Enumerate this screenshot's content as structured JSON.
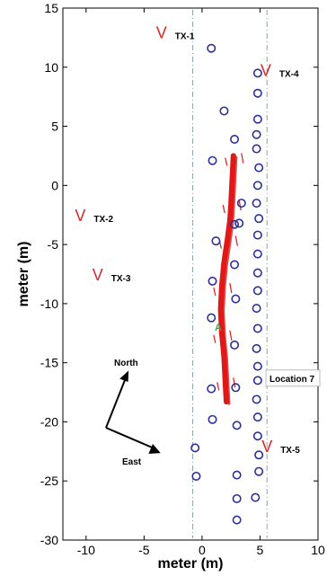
{
  "chart_data": {
    "type": "scatter",
    "title": "",
    "xlabel": "meter (m)",
    "ylabel": "meter (m)",
    "xlim": [
      -12,
      10
    ],
    "ylim": [
      -30,
      15
    ],
    "xticks": [
      -10,
      -5,
      0,
      5,
      10
    ],
    "yticks": [
      15,
      10,
      5,
      0,
      -5,
      -10,
      -15,
      -20,
      -25,
      -30
    ],
    "grid": false,
    "colors": {
      "circles": "#2b2f9a",
      "tx": "#d42a2a",
      "path": "#e01818",
      "guide": "#7fa8a8",
      "start": "#3aa63a"
    },
    "guide_lines_x": [
      -0.8,
      5.6
    ],
    "transmitters": [
      {
        "label": "TX-1",
        "x": -3.5,
        "y": 13.0
      },
      {
        "label": "TX-4",
        "x": 5.5,
        "y": 9.8
      },
      {
        "label": "TX-2",
        "x": -10.5,
        "y": -2.5
      },
      {
        "label": "TX-3",
        "x": -9.0,
        "y": -7.5
      },
      {
        "label": "TX-5",
        "x": 5.6,
        "y": -22.0
      }
    ],
    "circles": [
      {
        "x": 0.8,
        "y": 11.6
      },
      {
        "x": 4.8,
        "y": 9.5
      },
      {
        "x": 4.8,
        "y": 7.8
      },
      {
        "x": 1.9,
        "y": 6.3
      },
      {
        "x": 4.8,
        "y": 5.6
      },
      {
        "x": 4.7,
        "y": 4.3
      },
      {
        "x": 2.8,
        "y": 3.9
      },
      {
        "x": 4.7,
        "y": 3.1
      },
      {
        "x": 0.9,
        "y": 2.1
      },
      {
        "x": 4.9,
        "y": 1.5
      },
      {
        "x": 4.8,
        "y": 0.0
      },
      {
        "x": 4.7,
        "y": -1.5
      },
      {
        "x": 3.4,
        "y": -1.5
      },
      {
        "x": 4.9,
        "y": -2.8
      },
      {
        "x": 2.8,
        "y": -3.3
      },
      {
        "x": 3.2,
        "y": -3.2
      },
      {
        "x": 4.8,
        "y": -4.2
      },
      {
        "x": 1.2,
        "y": -4.7
      },
      {
        "x": 4.8,
        "y": -5.8
      },
      {
        "x": 2.8,
        "y": -6.7
      },
      {
        "x": 4.8,
        "y": -7.4
      },
      {
        "x": 0.9,
        "y": -8.1
      },
      {
        "x": 4.8,
        "y": -8.9
      },
      {
        "x": 2.9,
        "y": -9.6
      },
      {
        "x": 4.7,
        "y": -10.4
      },
      {
        "x": 0.8,
        "y": -11.2
      },
      {
        "x": 4.8,
        "y": -12.1
      },
      {
        "x": 2.8,
        "y": -13.5
      },
      {
        "x": 4.7,
        "y": -13.8
      },
      {
        "x": 4.8,
        "y": -15.3
      },
      {
        "x": 4.8,
        "y": -16.5
      },
      {
        "x": 0.8,
        "y": -17.2
      },
      {
        "x": 2.9,
        "y": -17.1
      },
      {
        "x": 4.7,
        "y": -18.1
      },
      {
        "x": 4.8,
        "y": -19.6
      },
      {
        "x": 0.9,
        "y": -19.8
      },
      {
        "x": 3.0,
        "y": -20.3
      },
      {
        "x": 4.8,
        "y": -21.2
      },
      {
        "x": -0.6,
        "y": -22.2
      },
      {
        "x": 4.9,
        "y": -22.8
      },
      {
        "x": 4.9,
        "y": -24.2
      },
      {
        "x": -0.5,
        "y": -24.6
      },
      {
        "x": 3.0,
        "y": -24.5
      },
      {
        "x": 4.6,
        "y": -26.4
      },
      {
        "x": 3.0,
        "y": -26.5
      },
      {
        "x": 3.0,
        "y": -28.3
      }
    ],
    "walk_path": [
      {
        "x": 2.7,
        "y": 2.5
      },
      {
        "x": 2.6,
        "y": 0.5
      },
      {
        "x": 2.5,
        "y": -1.5
      },
      {
        "x": 2.4,
        "y": -3.0
      },
      {
        "x": 2.2,
        "y": -4.5
      },
      {
        "x": 1.9,
        "y": -6.5
      },
      {
        "x": 1.7,
        "y": -8.5
      },
      {
        "x": 1.6,
        "y": -10.5
      },
      {
        "x": 1.7,
        "y": -12.5
      },
      {
        "x": 1.9,
        "y": -14.5
      },
      {
        "x": 2.0,
        "y": -16.5
      },
      {
        "x": 2.1,
        "y": -18.3
      }
    ],
    "start_marker": {
      "label": "A",
      "x": 1.4,
      "y": -12.0
    },
    "location_label": {
      "text": "Location 7",
      "x": 5.2,
      "y": -16.3
    },
    "compass": {
      "north_label": "North",
      "east_label": "East"
    }
  }
}
